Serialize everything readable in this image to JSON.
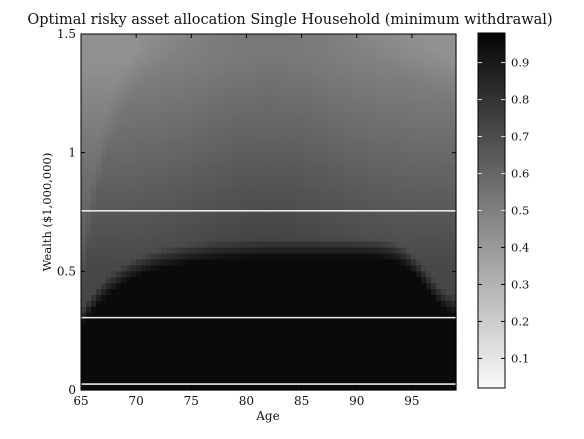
{
  "chart_data": {
    "type": "heatmap",
    "title": "Optimal risky asset allocation Single Household (minimum withdrawal)",
    "xlabel": "Age",
    "ylabel": "Wealth ($1,000,000)",
    "xlim": [
      65,
      99
    ],
    "ylim": [
      0,
      1.5
    ],
    "x_ticks": [
      "65",
      "70",
      "75",
      "80",
      "85",
      "90",
      "95"
    ],
    "y_ticks": [
      "0",
      "0.5",
      "1",
      "1.5"
    ],
    "colorbar": {
      "range": [
        0.02,
        0.98
      ],
      "ticks": [
        "0.1",
        "0.2",
        "0.3",
        "0.4",
        "0.5",
        "0.6",
        "0.7",
        "0.8",
        "0.9"
      ],
      "colormap": "gray-reversed"
    },
    "horizontal_lines": [
      0.025,
      0.305,
      0.755
    ],
    "line_color": "#e8e8e8",
    "grid": false
  }
}
